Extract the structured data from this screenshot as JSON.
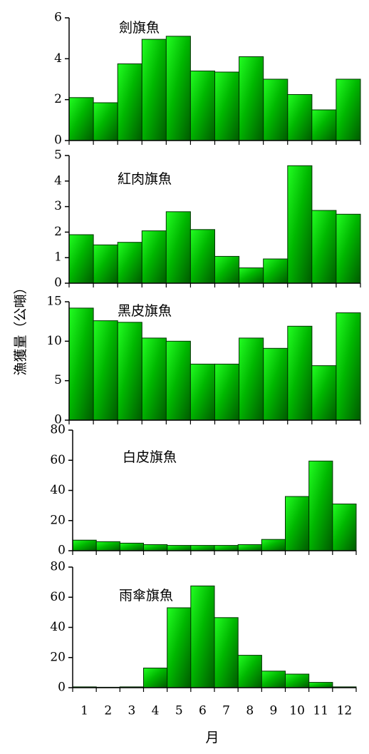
{
  "chart_data": {
    "type": "bar",
    "ylabel": "漁獲量（公噸）",
    "xlabel": "月",
    "categories": [
      "1",
      "2",
      "3",
      "4",
      "5",
      "6",
      "7",
      "8",
      "9",
      "10",
      "11",
      "12"
    ],
    "colors": {
      "bar_light": "#22ff22",
      "bar_dark": "#005a00",
      "axis": "#000000"
    },
    "panels": [
      {
        "title": "劍旗魚",
        "ylim": [
          0,
          6
        ],
        "yticks": [
          0,
          2,
          4,
          6
        ],
        "values": [
          2.1,
          1.85,
          3.75,
          4.95,
          5.1,
          3.4,
          3.35,
          4.1,
          3.0,
          2.25,
          1.5,
          3.0
        ]
      },
      {
        "title": "紅肉旗魚",
        "ylim": [
          0,
          5
        ],
        "yticks": [
          0,
          1,
          2,
          3,
          4,
          5
        ],
        "values": [
          1.9,
          1.5,
          1.6,
          2.05,
          2.8,
          2.1,
          1.05,
          0.6,
          0.95,
          4.6,
          2.85,
          2.7
        ]
      },
      {
        "title": "黑皮旗魚",
        "ylim": [
          0,
          15
        ],
        "yticks": [
          0,
          5,
          10,
          15
        ],
        "values": [
          14.2,
          12.6,
          12.4,
          10.4,
          10.0,
          7.1,
          7.1,
          10.4,
          9.1,
          11.9,
          6.9,
          13.6
        ]
      },
      {
        "title": "白皮旗魚",
        "ylim": [
          0,
          80
        ],
        "yticks": [
          0,
          20,
          40,
          60,
          80
        ],
        "values": [
          7,
          6,
          5,
          4,
          3.5,
          3.5,
          3.5,
          4,
          7.5,
          36,
          59.5,
          31
        ]
      },
      {
        "title": "雨傘旗魚",
        "ylim": [
          0,
          80
        ],
        "yticks": [
          0,
          20,
          40,
          60,
          80
        ],
        "values": [
          0.5,
          0.3,
          0.5,
          13,
          53,
          67.5,
          46.5,
          21.5,
          11,
          9,
          3.5,
          0.5
        ]
      }
    ]
  }
}
